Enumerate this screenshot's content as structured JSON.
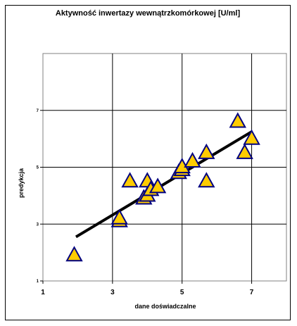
{
  "chart_data": {
    "type": "scatter",
    "title": "Aktywność inwertazy wewnątrzkomórkowej [U/ml]",
    "xlabel": "dane doświadczalne",
    "ylabel": "predykcja",
    "xlim": [
      1,
      8
    ],
    "ylim": [
      1,
      9
    ],
    "x_ticks": [
      "1",
      "3",
      "5",
      "7"
    ],
    "y_ticks": [
      "1",
      "3",
      "5",
      "7"
    ],
    "grid": true,
    "legend": "none",
    "points": [
      {
        "x": 1.9,
        "y": 1.9
      },
      {
        "x": 3.2,
        "y": 3.1
      },
      {
        "x": 3.2,
        "y": 3.2
      },
      {
        "x": 3.5,
        "y": 4.5
      },
      {
        "x": 3.9,
        "y": 3.9
      },
      {
        "x": 4.0,
        "y": 4.0
      },
      {
        "x": 4.0,
        "y": 4.5
      },
      {
        "x": 4.1,
        "y": 4.2
      },
      {
        "x": 4.3,
        "y": 4.3
      },
      {
        "x": 4.9,
        "y": 4.8
      },
      {
        "x": 5.0,
        "y": 4.9
      },
      {
        "x": 5.0,
        "y": 5.0
      },
      {
        "x": 5.3,
        "y": 5.2
      },
      {
        "x": 5.7,
        "y": 4.5
      },
      {
        "x": 5.7,
        "y": 5.5
      },
      {
        "x": 6.6,
        "y": 6.6
      },
      {
        "x": 6.8,
        "y": 5.5
      },
      {
        "x": 7.0,
        "y": 6.0
      }
    ],
    "trendline": {
      "x": [
        1.95,
        7.0
      ],
      "y": [
        2.55,
        6.25
      ]
    },
    "colors": {
      "marker_fill": "#FFCC00",
      "marker_stroke": "#000080",
      "trendline": "#000000",
      "grid": "#000000"
    }
  }
}
